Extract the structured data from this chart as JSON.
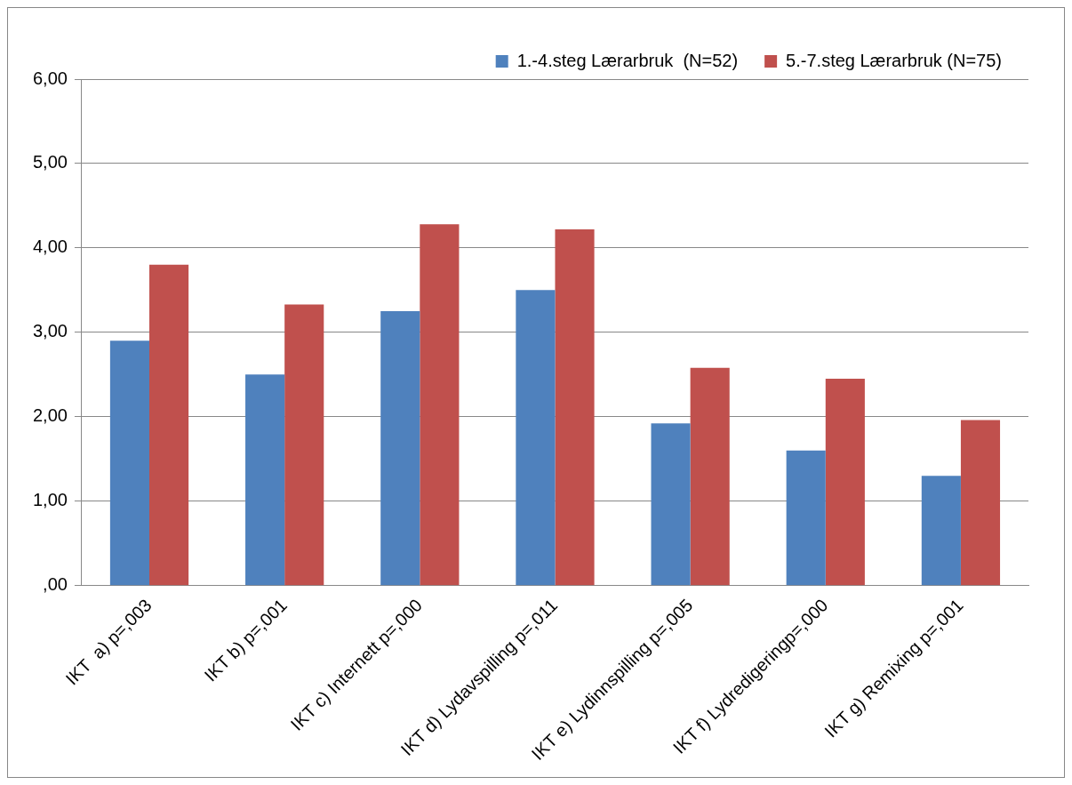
{
  "chart_data": {
    "type": "bar",
    "categories": [
      "IKT  a) p=,003",
      "IKT b) p=,001",
      "IKT c) Internett p=,000",
      "IKT d) Lydavspilling p=,011",
      "IKT e) Lydinnspilling p=,005",
      "IKT f) Lydredigeringp=,000",
      "IKT g) Remixing p=,001"
    ],
    "series": [
      {
        "name": "1.-4.steg Lærarbruk  (N=52)",
        "color": "#4f81bd",
        "values": [
          2.9,
          2.5,
          3.25,
          3.5,
          1.92,
          1.6,
          1.3
        ]
      },
      {
        "name": "5.-7.steg Lærarbruk (N=75)",
        "color": "#c0504d",
        "values": [
          3.8,
          3.33,
          4.28,
          4.22,
          2.58,
          2.45,
          1.96
        ]
      }
    ],
    "ylim": [
      0,
      6
    ],
    "yticks": [
      {
        "value": 0,
        "label": ",00"
      },
      {
        "value": 1,
        "label": "1,00"
      },
      {
        "value": 2,
        "label": "2,00"
      },
      {
        "value": 3,
        "label": "3,00"
      },
      {
        "value": 4,
        "label": "4,00"
      },
      {
        "value": 5,
        "label": "5,00"
      },
      {
        "value": 6,
        "label": "6,00"
      }
    ],
    "grid": "y",
    "legend": "top"
  }
}
